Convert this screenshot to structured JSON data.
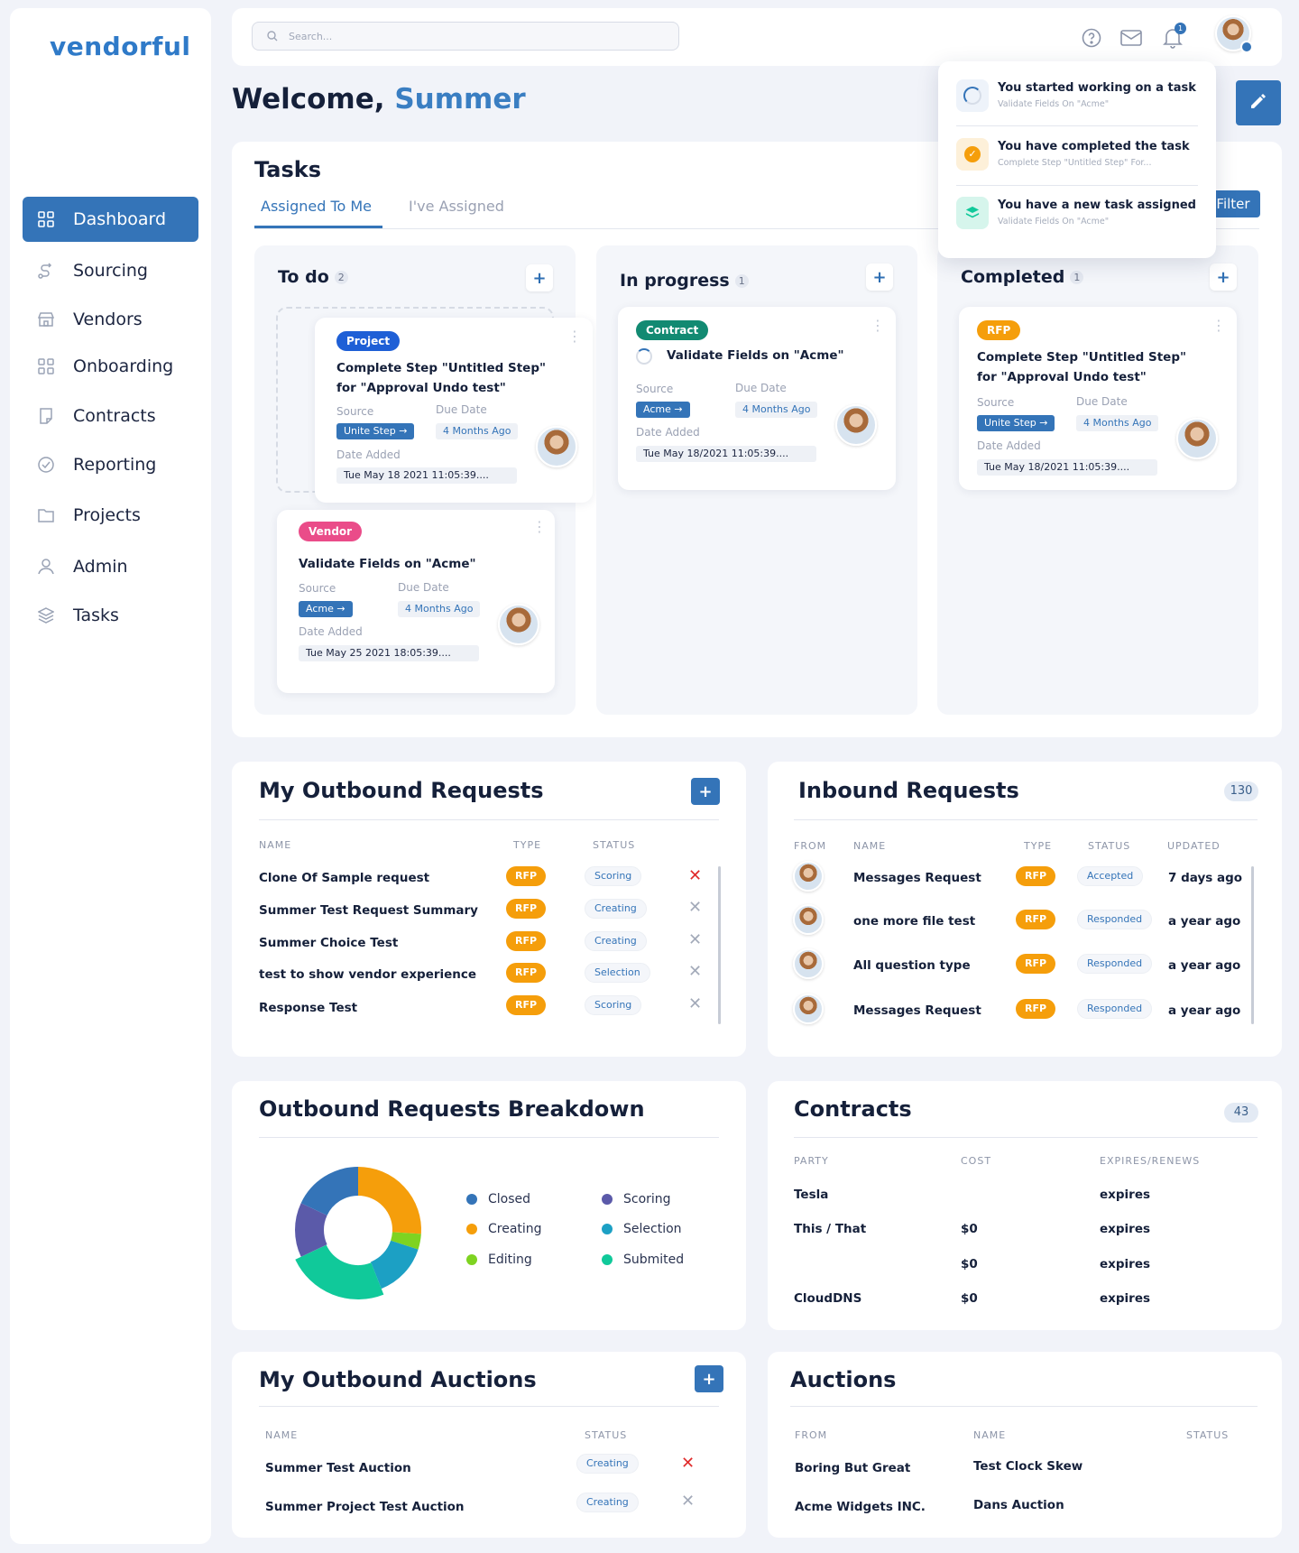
{
  "brand": {
    "logo": "vendorful"
  },
  "nav": {
    "items": [
      {
        "label": "Dashboard",
        "icon": "grid-icon",
        "active": true
      },
      {
        "label": "Sourcing",
        "icon": "route-icon"
      },
      {
        "label": "Vendors",
        "icon": "store-icon"
      },
      {
        "label": "Onboarding",
        "icon": "grid-outline-icon"
      },
      {
        "label": "Contracts",
        "icon": "document-icon"
      },
      {
        "label": "Reporting",
        "icon": "check-circle-icon"
      },
      {
        "label": "Projects",
        "icon": "folder-icon"
      },
      {
        "label": "Admin",
        "icon": "user-icon"
      },
      {
        "label": "Tasks",
        "icon": "layers-icon"
      }
    ]
  },
  "topbar": {
    "search_placeholder": "Search...",
    "notification_count": "1"
  },
  "welcome": {
    "prefix": "Welcome,",
    "name": "Summer"
  },
  "notifications": [
    {
      "title": "You started working on a task",
      "sub": "Validate Fields On \"Acme\""
    },
    {
      "title": "You have completed the task",
      "sub": "Complete Step \"Untitled Step\" For..."
    },
    {
      "title": "You have a new task assigned",
      "sub": "Validate Fields On \"Acme\""
    }
  ],
  "tasks": {
    "title": "Tasks",
    "tabs": [
      "Assigned To Me",
      "I've Assigned"
    ],
    "filter_label": "Filter",
    "labels": {
      "source": "Source",
      "due": "Due Date",
      "added": "Date Added"
    },
    "columns": [
      {
        "name": "To do",
        "count": "2"
      },
      {
        "name": "In progress",
        "count": "1"
      },
      {
        "name": "Completed",
        "count": "1"
      }
    ],
    "cards": {
      "todo1": {
        "tag": "Project",
        "title": "Complete Step \"Untitled Step\" for \"Approval Undo test\"",
        "source": "Unite Step",
        "due": "4 Months Ago",
        "added": "Tue May 18 2021 11:05:39...."
      },
      "todo2": {
        "tag": "Vendor",
        "title": "Validate Fields on \"Acme\"",
        "source": "Acme",
        "due": "4 Months Ago",
        "added": "Tue May 25 2021 18:05:39...."
      },
      "prog1": {
        "tag": "Contract",
        "title": "Validate Fields on \"Acme\"",
        "source": "Acme",
        "due": "4 Months Ago",
        "added": "Tue May 18/2021 11:05:39...."
      },
      "done1": {
        "tag": "RFP",
        "title": "Complete Step \"Untitled Step\" for \"Approval Undo test\"",
        "source": "Unite Step",
        "due": "4 Months Ago",
        "added": "Tue May 18/2021 11:05:39...."
      }
    }
  },
  "outbound": {
    "title": "My Outbound Requests",
    "headers": [
      "NAME",
      "TYPE",
      "STATUS"
    ],
    "rows": [
      {
        "name": "Clone Of Sample request",
        "type": "RFP",
        "status": "Scoring"
      },
      {
        "name": "Summer Test Request Summary",
        "type": "RFP",
        "status": "Creating"
      },
      {
        "name": "Summer Choice Test",
        "type": "RFP",
        "status": "Creating"
      },
      {
        "name": "test to show vendor experience",
        "type": "RFP",
        "status": "Selection"
      },
      {
        "name": "Response Test",
        "type": "RFP",
        "status": "Scoring"
      }
    ]
  },
  "inbound": {
    "title": "Inbound Requests",
    "count": "130",
    "headers": [
      "FROM",
      "NAME",
      "TYPE",
      "STATUS",
      "UPDATED"
    ],
    "rows": [
      {
        "name": "Messages Request",
        "type": "RFP",
        "status": "Accepted",
        "updated": "7 days ago"
      },
      {
        "name": "one more file test",
        "type": "RFP",
        "status": "Responded",
        "updated": "a year ago"
      },
      {
        "name": "All question type",
        "type": "RFP",
        "status": "Responded",
        "updated": "a year ago"
      },
      {
        "name": "Messages Request",
        "type": "RFP",
        "status": "Responded",
        "updated": "a year ago"
      }
    ]
  },
  "breakdown": {
    "title": "Outbound Requests Breakdown",
    "legend": [
      {
        "label": "Closed",
        "color": "#3474b8"
      },
      {
        "label": "Scoring",
        "color": "#5b5aa9"
      },
      {
        "label": "Creating",
        "color": "#f59e0b"
      },
      {
        "label": "Selection",
        "color": "#1ca0c4"
      },
      {
        "label": "Editing",
        "color": "#7ed321"
      },
      {
        "label": "Submited",
        "color": "#10c99a"
      }
    ]
  },
  "chart_data": {
    "type": "pie",
    "categories": [
      "Creating",
      "Editing",
      "Selection",
      "Submited",
      "Scoring",
      "Closed"
    ],
    "values": [
      26,
      4,
      14,
      24,
      14,
      18
    ],
    "colors": [
      "#f59e0b",
      "#7ed321",
      "#1ca0c4",
      "#10c99a",
      "#5b5aa9",
      "#3474b8"
    ]
  },
  "contracts": {
    "title": "Contracts",
    "count": "43",
    "headers": [
      "PARTY",
      "COST",
      "EXPIRES/RENEWS"
    ],
    "rows": [
      {
        "party": "Tesla",
        "cost": "",
        "expires": "expires"
      },
      {
        "party": "This / That",
        "cost": "$0",
        "expires": "expires"
      },
      {
        "party": "",
        "cost": "$0",
        "expires": "expires"
      },
      {
        "party": "CloudDNS",
        "cost": "$0",
        "expires": "expires"
      }
    ]
  },
  "out_auctions": {
    "title": "My Outbound Auctions",
    "headers": [
      "NAME",
      "STATUS"
    ],
    "rows": [
      {
        "name": "Summer Test Auction",
        "status": "Creating"
      },
      {
        "name": "Summer Project Test Auction",
        "status": "Creating"
      }
    ]
  },
  "auctions": {
    "title": "Auctions",
    "headers": [
      "FROM",
      "NAME",
      "STATUS"
    ],
    "rows": [
      {
        "from": "Boring But Great",
        "name": "Test Clock Skew"
      },
      {
        "from": "Acme Widgets INC.",
        "name": "Dans Auction"
      }
    ]
  }
}
